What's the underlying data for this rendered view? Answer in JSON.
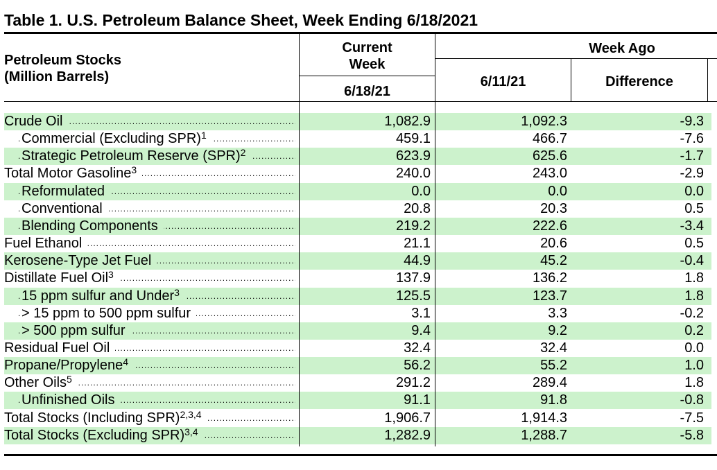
{
  "title": "Table 1.  U.S. Petroleum Balance Sheet, Week Ending 6/18/2021",
  "header": {
    "stub_line1": "Petroleum Stocks",
    "stub_line2": "(Million Barrels)",
    "current_line1": "Current",
    "current_line2": "Week",
    "current_date": "6/18/21",
    "week_ago": "Week Ago",
    "week_ago_date": "6/11/21",
    "difference": "Difference"
  },
  "rows": [
    {
      "label": "Crude Oil",
      "sup": "",
      "indent": 0,
      "current": "1,082.9",
      "week_ago": "1,092.3",
      "difference": "-9.3",
      "shaded": true
    },
    {
      "label": "Commercial (Excluding SPR)",
      "sup": "1",
      "indent": 1,
      "current": "459.1",
      "week_ago": "466.7",
      "difference": "-7.6",
      "shaded": false
    },
    {
      "label": "Strategic Petroleum Reserve (SPR)",
      "sup": "2",
      "indent": 1,
      "current": "623.9",
      "week_ago": "625.6",
      "difference": "-1.7",
      "shaded": true
    },
    {
      "label": "Total Motor Gasoline",
      "sup": "3",
      "indent": 0,
      "current": "240.0",
      "week_ago": "243.0",
      "difference": "-2.9",
      "shaded": false
    },
    {
      "label": "Reformulated",
      "sup": "",
      "indent": 1,
      "current": "0.0",
      "week_ago": "0.0",
      "difference": "0.0",
      "shaded": true
    },
    {
      "label": "Conventional",
      "sup": "",
      "indent": 1,
      "current": "20.8",
      "week_ago": "20.3",
      "difference": "0.5",
      "shaded": false
    },
    {
      "label": "Blending Components",
      "sup": "",
      "indent": 1,
      "current": "219.2",
      "week_ago": "222.6",
      "difference": "-3.4",
      "shaded": true
    },
    {
      "label": "Fuel Ethanol",
      "sup": "",
      "indent": 0,
      "current": "21.1",
      "week_ago": "20.6",
      "difference": "0.5",
      "shaded": false
    },
    {
      "label": "Kerosene-Type Jet Fuel",
      "sup": "",
      "indent": 0,
      "current": "44.9",
      "week_ago": "45.2",
      "difference": "-0.4",
      "shaded": true
    },
    {
      "label": "Distillate Fuel Oil",
      "sup": "3",
      "indent": 0,
      "current": "137.9",
      "week_ago": "136.2",
      "difference": "1.8",
      "shaded": false
    },
    {
      "label": "15 ppm sulfur and Under",
      "sup": "3",
      "indent": 1,
      "current": "125.5",
      "week_ago": "123.7",
      "difference": "1.8",
      "shaded": true
    },
    {
      "label": "> 15 ppm to 500 ppm sulfur",
      "sup": "",
      "indent": 1,
      "current": "3.1",
      "week_ago": "3.3",
      "difference": "-0.2",
      "shaded": false
    },
    {
      "label": "> 500 ppm sulfur",
      "sup": "",
      "indent": 1,
      "current": "9.4",
      "week_ago": "9.2",
      "difference": "0.2",
      "shaded": true
    },
    {
      "label": "Residual Fuel Oil",
      "sup": "",
      "indent": 0,
      "current": "32.4",
      "week_ago": "32.4",
      "difference": "0.0",
      "shaded": false
    },
    {
      "label": "Propane/Propylene",
      "sup": "4",
      "indent": 0,
      "current": "56.2",
      "week_ago": "55.2",
      "difference": "1.0",
      "shaded": true
    },
    {
      "label": "Other Oils",
      "sup": "5",
      "indent": 0,
      "current": "291.2",
      "week_ago": "289.4",
      "difference": "1.8",
      "shaded": false
    },
    {
      "label": "Unfinished Oils",
      "sup": "",
      "indent": 1,
      "current": "91.1",
      "week_ago": "91.8",
      "difference": "-0.8",
      "shaded": true
    },
    {
      "label": "Total Stocks (Including SPR)",
      "sup": "2,3,4",
      "indent": 0,
      "current": "1,906.7",
      "week_ago": "1,914.3",
      "difference": "-7.5",
      "shaded": false
    },
    {
      "label": "Total Stocks (Excluding SPR)",
      "sup": "3,4",
      "indent": 0,
      "current": "1,282.9",
      "week_ago": "1,288.7",
      "difference": "-5.8",
      "shaded": true
    }
  ],
  "colors": {
    "row_shade": "#ccf2cc",
    "rule": "#000000"
  }
}
